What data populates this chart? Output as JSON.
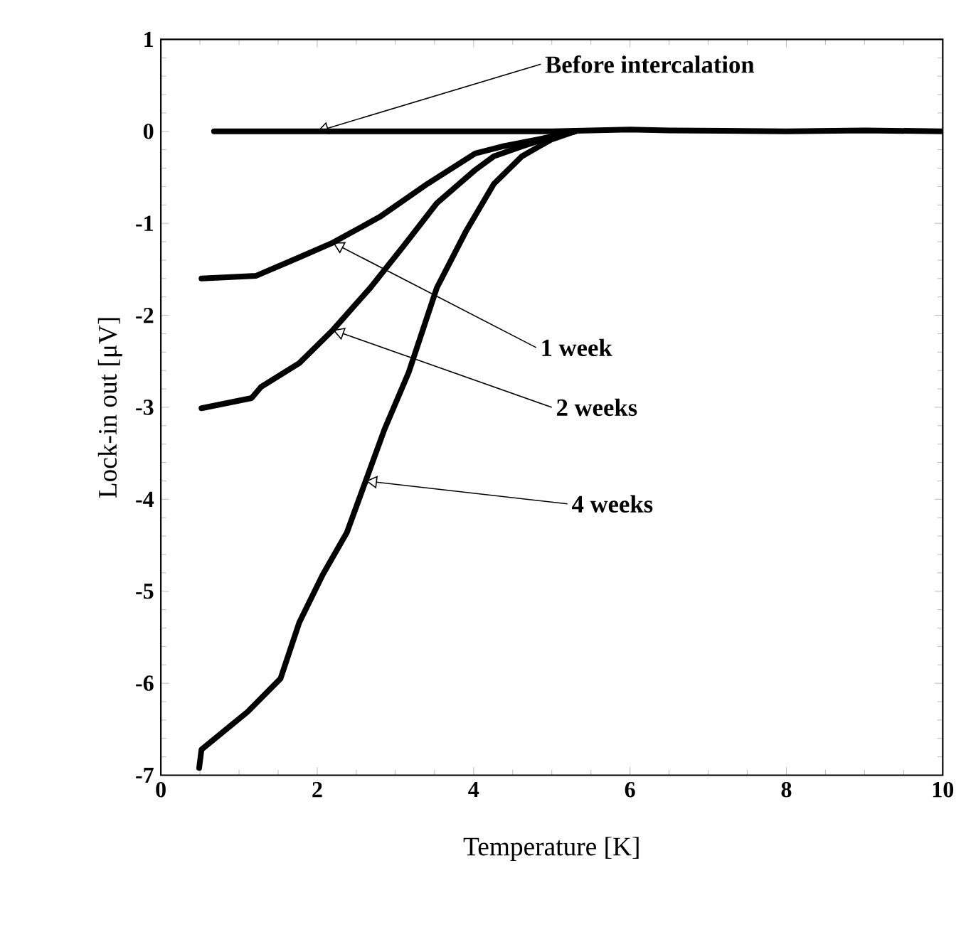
{
  "chart_data": {
    "type": "line",
    "xlabel": "Temperature [K]",
    "ylabel": "Lock-in out [μV]",
    "xlim": [
      0,
      10
    ],
    "ylim": [
      -7,
      1
    ],
    "xticks": [
      0,
      2,
      4,
      6,
      8,
      10
    ],
    "yticks": [
      -7,
      -6,
      -5,
      -4,
      -3,
      -2,
      -1,
      0,
      1
    ],
    "grid": false,
    "marker": "none",
    "line_style": "solid",
    "series": [
      {
        "color": "#000000",
        "x": [
          0.68,
          2,
          4,
          5,
          6,
          6.5,
          8,
          9,
          10
        ],
        "values": [
          0,
          0,
          0,
          0,
          0.02,
          0.01,
          0,
          0.01,
          0
        ]
      },
      {
        "color": "#000000",
        "x": [
          0.52,
          1.22,
          1.77,
          2.2,
          2.8,
          3.41,
          4.02,
          4.39,
          4.81,
          5.1,
          5.3
        ],
        "values": [
          -1.6,
          -1.57,
          -1.37,
          -1.21,
          -0.93,
          -0.57,
          -0.24,
          -0.16,
          -0.09,
          -0.04,
          0
        ]
      },
      {
        "color": "#000000",
        "x": [
          0.52,
          1.16,
          1.28,
          1.77,
          2.2,
          2.68,
          3.11,
          3.53,
          4.02,
          4.26,
          4.63,
          4.99,
          5.3
        ],
        "values": [
          -3.01,
          -2.9,
          -2.78,
          -2.52,
          -2.16,
          -1.7,
          -1.24,
          -0.78,
          -0.42,
          -0.27,
          -0.16,
          -0.06,
          0
        ]
      },
      {
        "color": "#000000",
        "x": [
          0.49,
          0.52,
          1.11,
          1.53,
          1.77,
          2.07,
          2.38,
          2.62,
          2.86,
          3.17,
          3.53,
          3.9,
          4.26,
          4.62,
          4.99,
          5.3
        ],
        "values": [
          -6.92,
          -6.72,
          -6.31,
          -5.95,
          -5.34,
          -4.82,
          -4.36,
          -3.8,
          -3.24,
          -2.62,
          -1.7,
          -1.09,
          -0.57,
          -0.27,
          -0.09,
          0
        ]
      }
    ],
    "annotations": [
      {
        "text": "Before intercalation",
        "x": 2,
        "y": 0
      },
      {
        "text": "1 week",
        "x": 2.2,
        "y": -1.21
      },
      {
        "text": "2 weeks",
        "x": 2.2,
        "y": -2.16
      },
      {
        "text": "4 weeks",
        "x": 2.62,
        "y": -3.8
      }
    ]
  }
}
